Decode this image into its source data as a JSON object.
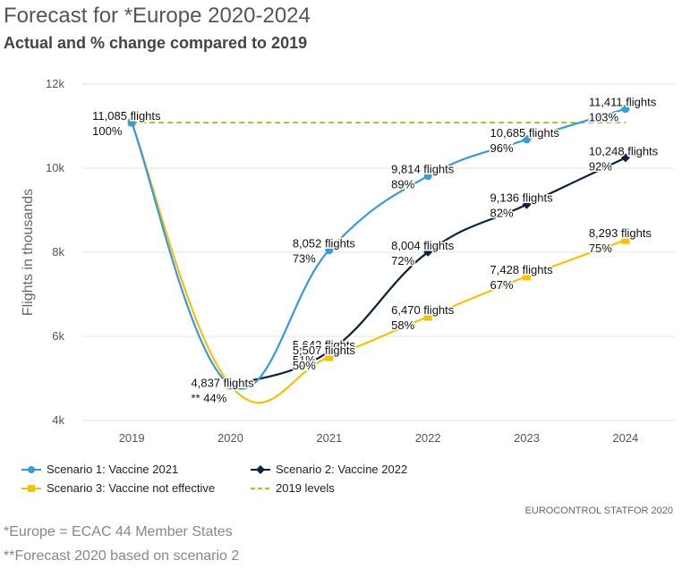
{
  "header": {
    "title": "Forecast for *Europe 2020-2024",
    "subtitle": "Actual and % change compared to 2019"
  },
  "credit": "EUROCONTROL STATFOR 2020",
  "footnotes": [
    "*Europe = ECAC 44 Member States",
    "**Forecast 2020 based on scenario 2"
  ],
  "colors": {
    "scenario1": "#3a9ad9",
    "scenario2": "#0d2340",
    "scenario3": "#f5c10a",
    "levels2019": "#9acd32",
    "grid": "#e6e6e6",
    "axis_text": "#555555"
  },
  "chart_data": {
    "type": "line",
    "title": "Forecast for *Europe 2020-2024",
    "subtitle": "Actual and % change compared to 2019",
    "xlabel": "",
    "ylabel": "Flights in thousands",
    "categories": [
      "2019",
      "2020",
      "2021",
      "2022",
      "2023",
      "2024"
    ],
    "ylim": [
      4,
      12
    ],
    "yticks": [
      4,
      6,
      8,
      10,
      12
    ],
    "ytick_labels": [
      "4k",
      "6k",
      "8k",
      "10k",
      "12k"
    ],
    "grid": true,
    "legend_position": "bottom",
    "series": [
      {
        "name": "Scenario 1: Vaccine 2021",
        "color_key": "scenario1",
        "marker": "circle",
        "dash": false,
        "x": [
          "2019",
          "2020",
          "2021",
          "2022",
          "2023",
          "2024"
        ],
        "values": [
          11.085,
          4.837,
          8.052,
          9.814,
          10.685,
          11.411
        ],
        "labels": [
          null,
          null,
          "8,052 flights",
          "9,814 flights",
          "10,685 flights",
          "11,411 flights"
        ],
        "pct": [
          null,
          null,
          "73%",
          "89%",
          "96%",
          "103%"
        ]
      },
      {
        "name": "Scenario 2: Vaccine 2022",
        "color_key": "scenario2",
        "marker": "diamond",
        "dash": false,
        "x": [
          "2020",
          "2021",
          "2022",
          "2023",
          "2024"
        ],
        "values": [
          4.837,
          5.642,
          8.004,
          9.136,
          10.248
        ],
        "labels": [
          null,
          "5,642 flights",
          "8,004 flights",
          "9,136 flights",
          "10,248 flights"
        ],
        "pct": [
          null,
          "51%",
          "72%",
          "82%",
          "92%"
        ]
      },
      {
        "name": "Scenario 3: Vaccine not effective",
        "color_key": "scenario3",
        "marker": "square",
        "dash": false,
        "x": [
          "2019",
          "2020",
          "2021",
          "2022",
          "2023",
          "2024"
        ],
        "values": [
          11.085,
          4.837,
          5.507,
          6.47,
          7.428,
          8.293
        ],
        "labels": [
          "11,085 flights",
          "4,837 flights",
          "5,507 flights",
          "6,470 flights",
          "7,428 flights",
          "8,293 flights"
        ],
        "pct": [
          "100%",
          "** 44%",
          "50%",
          "58%",
          "67%",
          "75%"
        ]
      },
      {
        "name": "2019 levels",
        "color_key": "levels2019",
        "marker": "none",
        "dash": true,
        "x": [
          "2019",
          "2024"
        ],
        "values": [
          11.085,
          11.085
        ]
      }
    ]
  }
}
